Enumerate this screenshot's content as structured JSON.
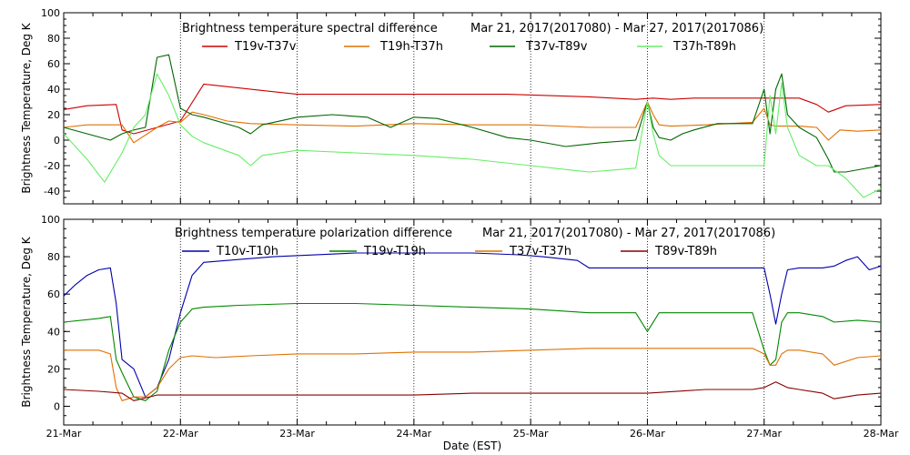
{
  "x_axis": {
    "label": "Date (EST)",
    "range": [
      0,
      7
    ],
    "tick_labels": [
      "21-Mar",
      "22-Mar",
      "23-Mar",
      "24-Mar",
      "25-Mar",
      "26-Mar",
      "27-Mar",
      "28-Mar"
    ]
  },
  "chart_data": [
    {
      "type": "line",
      "title": "Brightness temperature spectral difference",
      "date_range": "Mar 21, 2017(2017080) - Mar 27, 2017(2017086)",
      "xlabel": "Date (EST)",
      "ylabel": "Brightness Temperature, Deg K",
      "xlim": [
        0,
        7
      ],
      "ylim": [
        -50,
        100
      ],
      "y_ticks": [
        -40,
        -20,
        0,
        20,
        40,
        60,
        80,
        100
      ],
      "grid": "dotted vertical at each day",
      "series": [
        {
          "name": "T19v-T37v",
          "color": "#cc0000",
          "x": [
            0,
            0.2,
            0.45,
            0.5,
            0.6,
            0.8,
            1.0,
            1.2,
            1.4,
            1.7,
            2.0,
            3.0,
            3.8,
            4.5,
            4.9,
            5.05,
            5.2,
            5.4,
            5.6,
            5.9,
            6.05,
            6.3,
            6.45,
            6.55,
            6.7,
            7.0
          ],
          "y": [
            24,
            27,
            28,
            8,
            5,
            10,
            15,
            44,
            42,
            39,
            36,
            36,
            36,
            34,
            32,
            33,
            32,
            33,
            33,
            33,
            33,
            33,
            28,
            22,
            27,
            28
          ]
        },
        {
          "name": "T19h-T37h",
          "color": "#e07000",
          "x": [
            0,
            0.2,
            0.5,
            0.6,
            0.8,
            0.9,
            1.0,
            1.1,
            1.2,
            1.4,
            1.6,
            2.0,
            2.5,
            3.0,
            3.5,
            4.0,
            4.5,
            4.9,
            5.0,
            5.05,
            5.1,
            5.2,
            5.5,
            5.9,
            6.0,
            6.05,
            6.1,
            6.3,
            6.45,
            6.55,
            6.65,
            6.8,
            7.0
          ],
          "y": [
            10,
            12,
            12,
            -2,
            10,
            15,
            14,
            22,
            20,
            15,
            13,
            12,
            11,
            13,
            12,
            12,
            10,
            10,
            30,
            20,
            12,
            11,
            12,
            14,
            25,
            12,
            11,
            11,
            10,
            0,
            8,
            7,
            8
          ]
        },
        {
          "name": "T37v-T89v",
          "color": "#006600",
          "x": [
            0,
            0.2,
            0.4,
            0.5,
            0.6,
            0.7,
            0.8,
            0.9,
            1.0,
            1.1,
            1.2,
            1.5,
            1.6,
            1.7,
            2.0,
            2.3,
            2.6,
            2.8,
            3.0,
            3.2,
            3.5,
            3.8,
            4.0,
            4.3,
            4.6,
            4.9,
            5.0,
            5.05,
            5.1,
            5.2,
            5.3,
            5.4,
            5.6,
            5.9,
            6.0,
            6.05,
            6.1,
            6.15,
            6.2,
            6.3,
            6.45,
            6.55,
            6.6,
            6.7,
            7.0
          ],
          "y": [
            10,
            5,
            0,
            5,
            8,
            10,
            65,
            67,
            25,
            20,
            18,
            10,
            5,
            12,
            18,
            20,
            18,
            10,
            18,
            17,
            10,
            2,
            0,
            -5,
            -2,
            0,
            30,
            10,
            2,
            0,
            5,
            8,
            13,
            13,
            40,
            5,
            40,
            52,
            20,
            10,
            2,
            -15,
            -25,
            -25,
            -20
          ]
        },
        {
          "name": "T37h-T89h",
          "color": "#66ee66",
          "x": [
            0,
            0.2,
            0.35,
            0.5,
            0.6,
            0.7,
            0.8,
            0.9,
            1.0,
            1.1,
            1.2,
            1.5,
            1.6,
            1.7,
            2.0,
            2.5,
            3.0,
            3.5,
            4.0,
            4.5,
            4.9,
            5.0,
            5.05,
            5.1,
            5.2,
            5.5,
            5.9,
            6.0,
            6.05,
            6.1,
            6.15,
            6.2,
            6.3,
            6.45,
            6.55,
            6.7,
            6.85,
            7.0
          ],
          "y": [
            5,
            -15,
            -33,
            -10,
            10,
            20,
            52,
            35,
            12,
            3,
            -2,
            -12,
            -20,
            -12,
            -8,
            -10,
            -12,
            -15,
            -20,
            -25,
            -22,
            30,
            5,
            -12,
            -20,
            -20,
            -20,
            -20,
            35,
            5,
            45,
            10,
            -12,
            -20,
            -20,
            -30,
            -45,
            -38
          ]
        }
      ]
    },
    {
      "type": "line",
      "title": "Brightness temperature polarization difference",
      "date_range": "Mar 21, 2017(2017080) - Mar 27, 2017(2017086)",
      "xlabel": "Date (EST)",
      "ylabel": "Brightness Temperature, Deg K",
      "xlim": [
        0,
        7
      ],
      "ylim": [
        -10,
        100
      ],
      "y_ticks": [
        0,
        20,
        40,
        60,
        80,
        100
      ],
      "grid": "dotted vertical at each day",
      "series": [
        {
          "name": "T10v-T10h",
          "color": "#0000aa",
          "x": [
            0,
            0.1,
            0.2,
            0.3,
            0.4,
            0.45,
            0.5,
            0.6,
            0.7,
            0.8,
            0.9,
            1.0,
            1.1,
            1.2,
            1.4,
            1.8,
            2.5,
            3.0,
            3.5,
            3.9,
            4.1,
            4.4,
            4.5,
            5.5,
            6.0,
            6.05,
            6.1,
            6.15,
            6.2,
            6.3,
            6.5,
            6.6,
            6.7,
            6.8,
            6.9,
            7.0
          ],
          "y": [
            59,
            65,
            70,
            73,
            74,
            55,
            25,
            20,
            5,
            10,
            25,
            50,
            70,
            77,
            78,
            80,
            82,
            82,
            82,
            81,
            80,
            78,
            74,
            74,
            74,
            60,
            44,
            60,
            73,
            74,
            74,
            75,
            78,
            80,
            73,
            75
          ]
        },
        {
          "name": "T19v-T19h",
          "color": "#008800",
          "x": [
            0,
            0.3,
            0.4,
            0.45,
            0.5,
            0.6,
            0.7,
            0.8,
            0.9,
            1.0,
            1.1,
            1.2,
            1.5,
            2.0,
            2.5,
            3.0,
            3.5,
            4.0,
            4.5,
            4.9,
            5.0,
            5.1,
            5.2,
            5.5,
            5.9,
            6.0,
            6.05,
            6.1,
            6.15,
            6.2,
            6.3,
            6.5,
            6.6,
            6.8,
            7.0
          ],
          "y": [
            45,
            47,
            48,
            25,
            18,
            5,
            3,
            8,
            30,
            45,
            52,
            53,
            54,
            55,
            55,
            54,
            53,
            52,
            50,
            50,
            40,
            50,
            50,
            50,
            50,
            30,
            22,
            25,
            45,
            50,
            50,
            48,
            45,
            46,
            45
          ]
        },
        {
          "name": "T37v-T37h",
          "color": "#e07000",
          "x": [
            0,
            0.3,
            0.4,
            0.45,
            0.5,
            0.6,
            0.7,
            0.8,
            0.9,
            1.0,
            1.1,
            1.3,
            1.6,
            2.0,
            2.5,
            3.0,
            3.5,
            4.0,
            4.5,
            5.0,
            5.5,
            5.9,
            6.0,
            6.05,
            6.1,
            6.15,
            6.2,
            6.3,
            6.5,
            6.6,
            6.8,
            7.0
          ],
          "y": [
            30,
            30,
            28,
            10,
            3,
            5,
            5,
            10,
            20,
            26,
            27,
            26,
            27,
            28,
            28,
            29,
            29,
            30,
            31,
            31,
            31,
            31,
            28,
            22,
            22,
            28,
            30,
            30,
            28,
            22,
            26,
            27
          ]
        },
        {
          "name": "T89v-T89h",
          "color": "#880000",
          "x": [
            0,
            0.3,
            0.5,
            0.6,
            0.8,
            1.0,
            1.5,
            2.0,
            2.5,
            3.0,
            3.5,
            4.0,
            4.5,
            5.0,
            5.5,
            5.9,
            6.0,
            6.1,
            6.2,
            6.3,
            6.5,
            6.6,
            6.8,
            7.0
          ],
          "y": [
            9,
            8,
            7,
            3,
            6,
            6,
            6,
            6,
            6,
            6,
            7,
            7,
            7,
            7,
            9,
            9,
            10,
            13,
            10,
            9,
            7,
            4,
            6,
            7
          ]
        }
      ]
    }
  ]
}
